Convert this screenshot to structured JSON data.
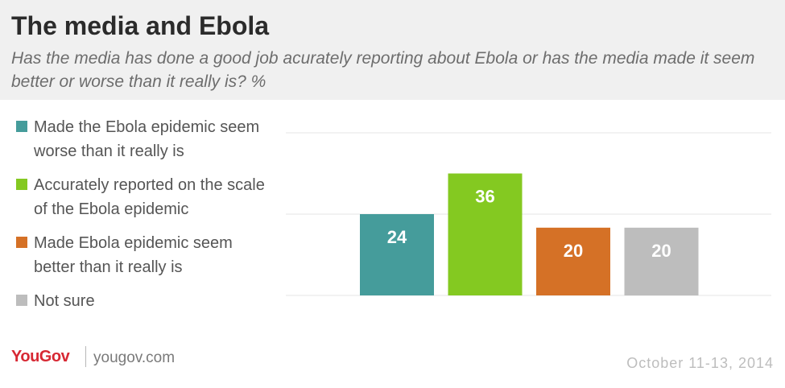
{
  "header": {
    "title": "The media and Ebola",
    "subtitle": "Has the media has done a good job acurately reporting about Ebola or has the media made it seem better or worse than it really is? %"
  },
  "footer": {
    "brand": "YouGov",
    "site": "yougov.com",
    "date": "October 11-13, 2014"
  },
  "chart_data": {
    "type": "bar",
    "categories": [
      "Made the Ebola epidemic seem worse than it really is",
      "Accurately reported on the scale of the Ebola epidemic",
      "Made Ebola epidemic seem better than it really is",
      "Not sure"
    ],
    "values": [
      24,
      36,
      20,
      20
    ],
    "colors": [
      "#459c9b",
      "#84c921",
      "#d57126",
      "#bdbdbd"
    ],
    "ylim": [
      0,
      48
    ],
    "gridlines": [
      0,
      24,
      48
    ],
    "grid": true,
    "legend": "left",
    "data_labels": true
  }
}
